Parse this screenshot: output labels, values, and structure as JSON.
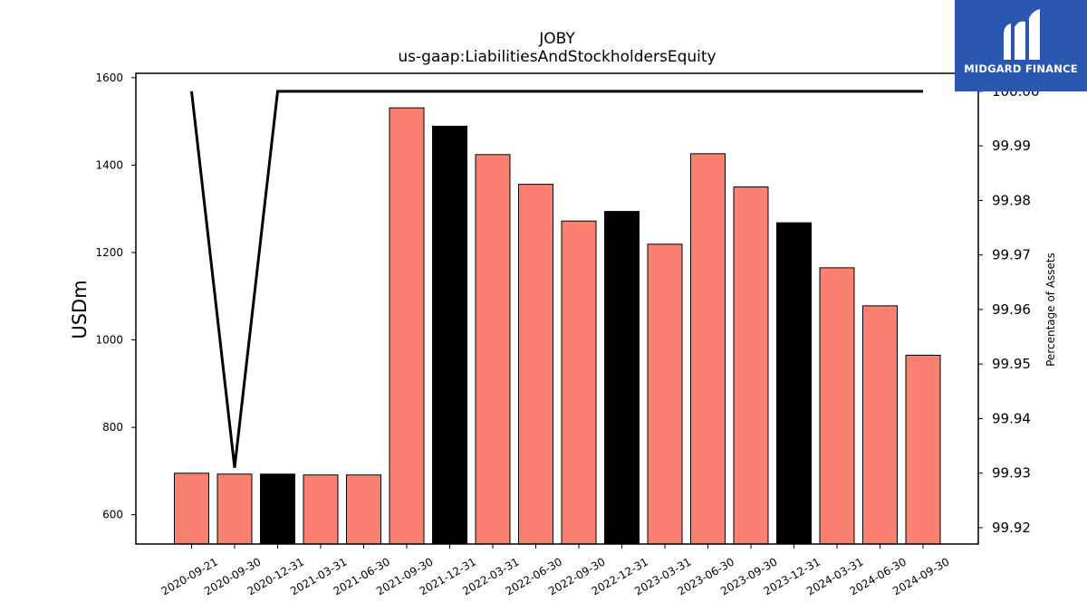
{
  "chart_data": {
    "type": "bar",
    "title": "JOBY",
    "subtitle": "us-gaap:LiabilitiesAndStockholdersEquity",
    "ylabel": "USDm",
    "ylabel_right": "Percentage of Assets",
    "categories": [
      "2020-09-21",
      "2020-09-30",
      "2020-12-31",
      "2021-03-31",
      "2021-06-30",
      "2021-09-30",
      "2021-12-31",
      "2022-03-31",
      "2022-06-30",
      "2022-09-30",
      "2022-12-31",
      "2023-03-31",
      "2023-06-30",
      "2023-09-30",
      "2023-12-31",
      "2024-03-31",
      "2024-06-30",
      "2024-09-30"
    ],
    "values": [
      695,
      693,
      693,
      691,
      691,
      1531,
      1489,
      1424,
      1356,
      1272,
      1294,
      1219,
      1426,
      1350,
      1268,
      1165,
      1078,
      965
    ],
    "bar_colors": [
      "#fa8072",
      "#fa8072",
      "#000000",
      "#fa8072",
      "#fa8072",
      "#fa8072",
      "#000000",
      "#fa8072",
      "#fa8072",
      "#fa8072",
      "#000000",
      "#fa8072",
      "#fa8072",
      "#fa8072",
      "#000000",
      "#fa8072",
      "#fa8072",
      "#fa8072"
    ],
    "ylim": [
      533,
      1610
    ],
    "yticks": [
      600,
      800,
      1000,
      1200,
      1400,
      1600
    ],
    "series_right": {
      "type": "line",
      "color": "#000000",
      "values": [
        100.0,
        99.931,
        100.0,
        100.0,
        100.0,
        100.0,
        100.0,
        100.0,
        100.0,
        100.0,
        100.0,
        100.0,
        100.0,
        100.0,
        100.0,
        100.0,
        100.0,
        100.0
      ]
    },
    "ylim_right": [
      99.917,
      100.0033
    ],
    "yticks_right": [
      "99.92",
      "99.93",
      "99.94",
      "99.95",
      "99.96",
      "99.97",
      "99.98",
      "99.99",
      "100.00"
    ],
    "grid": false
  },
  "logo": {
    "text": "MIDGARD FINANCE",
    "color": "#2a58b0"
  }
}
